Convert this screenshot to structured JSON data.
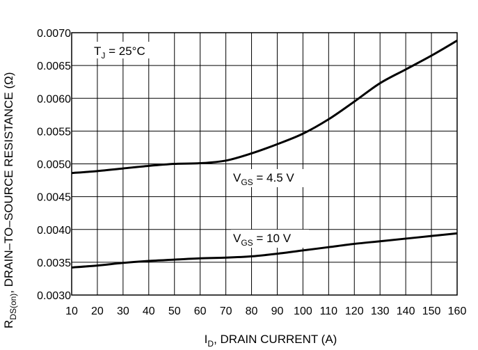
{
  "chart_data": {
    "type": "line",
    "xlabel": {
      "main": "I",
      "sub": "D",
      "rest": ", DRAIN CURRENT (A)"
    },
    "ylabel": {
      "main": "R",
      "sub": "DS(on)",
      "rest": ", DRAIN–TO–SOURCE RESISTANCE (Ω)"
    },
    "xlim": [
      10,
      160
    ],
    "ylim": [
      0.003,
      0.007
    ],
    "xticks": [
      10,
      20,
      30,
      40,
      50,
      60,
      70,
      80,
      90,
      100,
      110,
      120,
      130,
      140,
      150,
      160
    ],
    "yticks": [
      "0.0030",
      "0.0035",
      "0.0040",
      "0.0045",
      "0.0050",
      "0.0055",
      "0.0060",
      "0.0065",
      "0.0070"
    ],
    "grid": true,
    "legend": "none",
    "annotations": [
      {
        "main": "T",
        "sub": "J",
        "rest": " = 25°C"
      },
      {
        "main": "V",
        "sub": "GS",
        "rest": " = 4.5 V"
      },
      {
        "main": "V",
        "sub": "GS",
        "rest": " = 10 V"
      }
    ],
    "series": [
      {
        "x": [
          10,
          20,
          30,
          40,
          50,
          60,
          70,
          80,
          90,
          100,
          110,
          120,
          130,
          140,
          150,
          160
        ],
        "y": [
          0.00486,
          0.00489,
          0.00493,
          0.00497,
          0.005,
          0.00501,
          0.00505,
          0.00516,
          0.0053,
          0.00546,
          0.00568,
          0.00595,
          0.00623,
          0.00644,
          0.00665,
          0.00688
        ]
      },
      {
        "x": [
          10,
          20,
          30,
          40,
          50,
          60,
          70,
          80,
          90,
          100,
          110,
          120,
          130,
          140,
          150,
          160
        ],
        "y": [
          0.00342,
          0.00345,
          0.00349,
          0.00352,
          0.00354,
          0.00356,
          0.00357,
          0.00359,
          0.00363,
          0.00368,
          0.00373,
          0.00378,
          0.00382,
          0.00386,
          0.0039,
          0.00394
        ]
      }
    ]
  }
}
